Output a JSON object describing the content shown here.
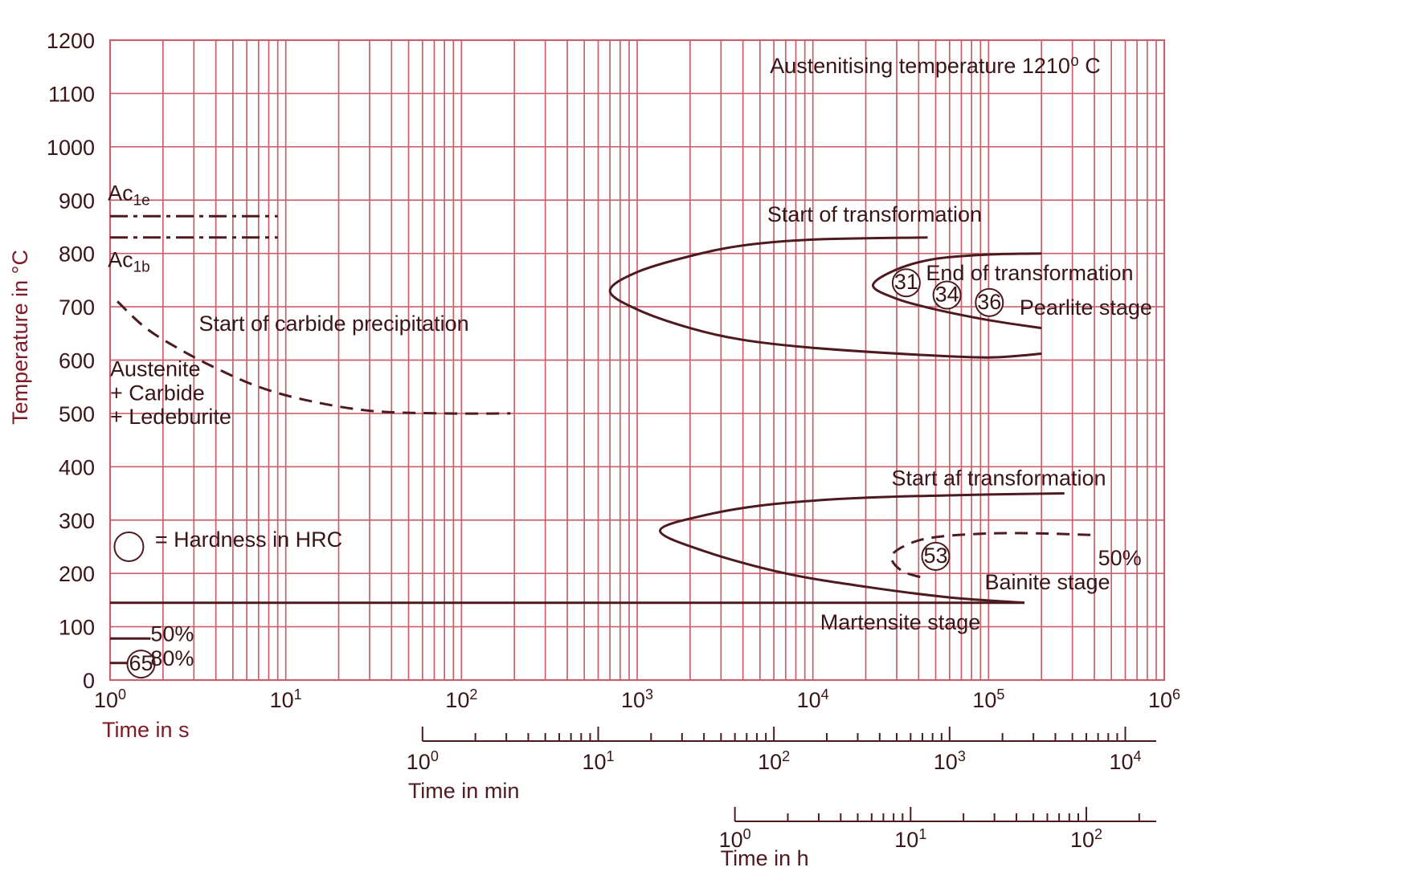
{
  "chart_data": {
    "type": "line",
    "title": "",
    "subtitle": "Austenitising temperature 1210⁰ C",
    "ylabel": "Temperature in °C",
    "ylim": [
      0,
      1200
    ],
    "yticks": [
      "0",
      "100",
      "200",
      "300",
      "400",
      "500",
      "600",
      "700",
      "800",
      "900",
      "1000",
      "1100",
      "1200"
    ],
    "xlabel": "Time in s",
    "xscale": "log",
    "xlim": [
      1,
      1000000
    ],
    "xticks": [
      {
        "base": "10",
        "exp": "0"
      },
      {
        "base": "10",
        "exp": "1"
      },
      {
        "base": "10",
        "exp": "2"
      },
      {
        "base": "10",
        "exp": "3"
      },
      {
        "base": "10",
        "exp": "4"
      },
      {
        "base": "10",
        "exp": "5"
      },
      {
        "base": "10",
        "exp": "6"
      }
    ],
    "secondary_axes": [
      {
        "label": "Time in min",
        "seconds_per_unit": 60,
        "range": [
          1,
          10000
        ],
        "ticks": [
          {
            "base": "10",
            "exp": "0"
          },
          {
            "base": "10",
            "exp": "1"
          },
          {
            "base": "10",
            "exp": "2"
          },
          {
            "base": "10",
            "exp": "3"
          },
          {
            "base": "10",
            "exp": "4"
          }
        ]
      },
      {
        "label": "Time in h",
        "seconds_per_unit": 3600,
        "range": [
          1,
          200
        ],
        "ticks": [
          {
            "base": "10",
            "exp": "0"
          },
          {
            "base": "10",
            "exp": "1"
          },
          {
            "base": "10",
            "exp": "2"
          }
        ]
      }
    ],
    "grid": true,
    "series": [
      {
        "style": "dash-dot",
        "points": [
          [
            1,
            870
          ],
          [
            9,
            870
          ]
        ]
      },
      {
        "style": "dash-dot",
        "points": [
          [
            1,
            830
          ],
          [
            9,
            830
          ]
        ]
      },
      {
        "style": "dashed",
        "points": [
          [
            1.1,
            710
          ],
          [
            1.6,
            660
          ],
          [
            2.5,
            620
          ],
          [
            4,
            585
          ],
          [
            7,
            550
          ],
          [
            13,
            525
          ],
          [
            30,
            505
          ],
          [
            80,
            500
          ],
          [
            190,
            500
          ]
        ]
      },
      {
        "style": "solid",
        "points": [
          [
            45000,
            830
          ],
          [
            10000,
            826
          ],
          [
            4000,
            815
          ],
          [
            2000,
            795
          ],
          [
            1000,
            765
          ],
          [
            700,
            730
          ],
          [
            1000,
            695
          ],
          [
            2000,
            660
          ],
          [
            4000,
            638
          ],
          [
            10000,
            623
          ],
          [
            40000,
            610
          ],
          [
            100000,
            605
          ],
          [
            200000,
            612
          ]
        ]
      },
      {
        "style": "solid",
        "points": [
          [
            200000,
            800
          ],
          [
            100000,
            798
          ],
          [
            50000,
            790
          ],
          [
            30000,
            770
          ],
          [
            22000,
            740
          ],
          [
            30000,
            715
          ],
          [
            50000,
            695
          ],
          [
            100000,
            675
          ],
          [
            200000,
            660
          ]
        ]
      },
      {
        "style": "solid",
        "points": [
          [
            270000,
            350
          ],
          [
            100000,
            348
          ],
          [
            20000,
            342
          ],
          [
            6000,
            330
          ],
          [
            2500,
            310
          ],
          [
            1350,
            280
          ],
          [
            2500,
            240
          ],
          [
            7000,
            200
          ],
          [
            20000,
            175
          ],
          [
            60000,
            155
          ],
          [
            160000,
            145
          ]
        ]
      },
      {
        "style": "solid",
        "points": [
          [
            1,
            145
          ],
          [
            160000,
            145
          ]
        ]
      },
      {
        "style": "dashed",
        "points": [
          [
            380000,
            272
          ],
          [
            200000,
            275
          ],
          [
            100000,
            275
          ],
          [
            50000,
            268
          ],
          [
            35000,
            255
          ],
          [
            28000,
            232
          ],
          [
            32000,
            205
          ],
          [
            42000,
            192
          ]
        ]
      },
      {
        "style": "solid",
        "points": [
          [
            1,
            78
          ],
          [
            1.7,
            78
          ]
        ]
      },
      {
        "style": "solid",
        "points": [
          [
            1,
            32
          ],
          [
            1.7,
            32
          ]
        ]
      }
    ],
    "annotations": [
      {
        "text": "Ac",
        "sub": "1e",
        "x": 0.97,
        "y": 900
      },
      {
        "text": "Ac",
        "sub": "1b",
        "x": 0.97,
        "y": 775
      },
      {
        "text": "Start of carbide precipitation",
        "x": 3.2,
        "y": 655
      },
      {
        "text": "Austenite",
        "x": 1,
        "y": 570
      },
      {
        "text": "+ Carbide",
        "x": 1,
        "y": 525
      },
      {
        "text": "+ Ledeburite",
        "x": 1,
        "y": 480
      },
      {
        "text": "Start of transformation",
        "x": 5500,
        "y": 860
      },
      {
        "text": "End of transformation",
        "x": 44000,
        "y": 750
      },
      {
        "text": "Pearlite stage",
        "x": 150000,
        "y": 685
      },
      {
        "text": "Start af transformation",
        "x": 28000,
        "y": 365
      },
      {
        "text": "50%",
        "x": 420000,
        "y": 215
      },
      {
        "text": "Bainite stage",
        "x": 95000,
        "y": 170
      },
      {
        "text": "Martensite stage",
        "x": 11000,
        "y": 95
      },
      {
        "text": "50%",
        "x": 1.7,
        "y": 73
      },
      {
        "text": "80%",
        "x": 1.7,
        "y": 27
      },
      {
        "text": "= Hardness in HRC",
        "x": 1.8,
        "y": 250
      }
    ],
    "hardness_values_hrc": [
      {
        "value": "31",
        "x": 34000,
        "y": 745
      },
      {
        "value": "34",
        "x": 58000,
        "y": 722
      },
      {
        "value": "36",
        "x": 101000,
        "y": 708
      },
      {
        "value": "53",
        "x": 50000,
        "y": 232
      },
      {
        "value": "65",
        "x": 1.5,
        "y": 30
      }
    ],
    "legend": {
      "symbol": "circle",
      "text": "= Hardness in HRC",
      "position": "lower-left"
    }
  }
}
